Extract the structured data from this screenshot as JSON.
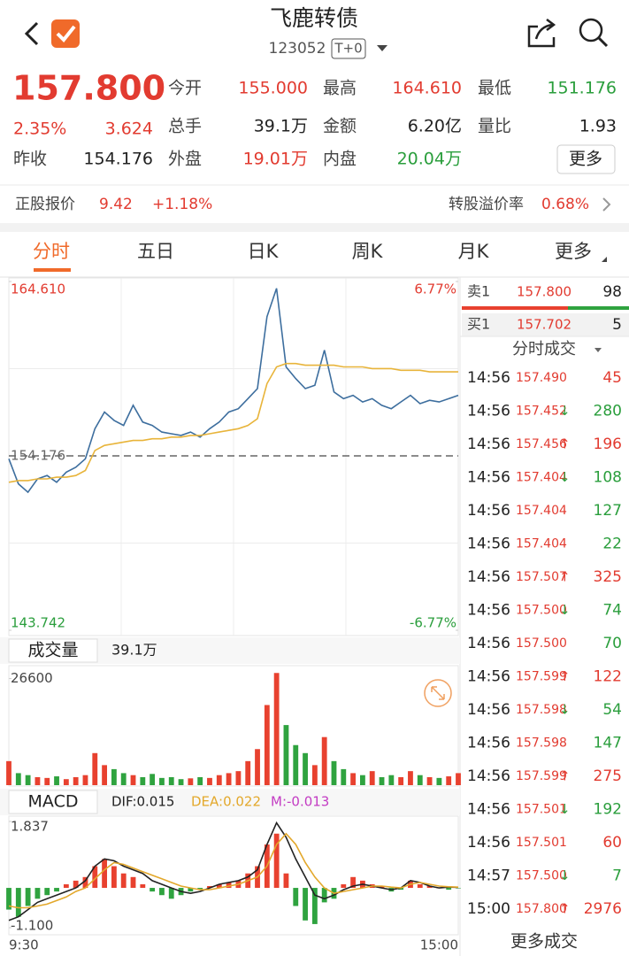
{
  "header": {
    "title": "飞鹿转债",
    "code": "123052",
    "badge": "T+0"
  },
  "quote": {
    "price": "157.800",
    "change_pct": "2.35%",
    "change": "3.624",
    "rows": [
      [
        {
          "label": "今开",
          "value": "155.000",
          "color": "#e23b30"
        },
        {
          "label": "最高",
          "value": "164.610",
          "color": "#e23b30"
        },
        {
          "label": "最低",
          "value": "151.176",
          "color": "#2a9e3c"
        }
      ],
      [
        {
          "label": "总手",
          "value": "39.1万",
          "color": "#222222"
        },
        {
          "label": "金额",
          "value": "6.20亿",
          "color": "#222222"
        },
        {
          "label": "量比",
          "value": "1.93",
          "color": "#222222"
        }
      ],
      [
        {
          "label": "昨收",
          "value": "154.176",
          "color": "#222222"
        },
        {
          "label": "外盘",
          "value": "19.01万",
          "color": "#e23b30"
        },
        {
          "label": "内盘",
          "value": "20.04万",
          "color": "#2a9e3c"
        }
      ]
    ],
    "more": "更多"
  },
  "stock": {
    "label": "正股报价",
    "price": "9.42",
    "change": "+1.18%",
    "premium_label": "转股溢价率",
    "premium": "0.68%"
  },
  "tabs": [
    "分时",
    "五日",
    "日K",
    "周K",
    "月K",
    "更多"
  ],
  "chart_data": [
    {
      "type": "line",
      "ylim": [
        143.742,
        164.61
      ],
      "yticks": [
        {
          "value": 164.61,
          "label": "164.610"
        },
        154.176,
        143.742
      ],
      "y2lim": [
        -6.77,
        6.77
      ],
      "y2ticks": [
        {
          "value": 6.77,
          "label": "6.77%"
        },
        {
          "value": -6.77,
          "label": "-6.77%"
        }
      ],
      "series": [
        {
          "color": "#3d6e9e",
          "values": [
            154.0,
            152.5,
            152.0,
            152.8,
            153.0,
            152.6,
            153.2,
            153.5,
            154.0,
            155.8,
            156.8,
            156.3,
            156.0,
            157.2,
            156.2,
            156.0,
            155.6,
            155.5,
            155.4,
            155.6,
            155.3,
            155.8,
            156.2,
            156.8,
            157.0,
            157.6,
            158.2,
            162.5,
            164.2,
            159.5,
            158.8,
            158.2,
            158.4,
            160.5,
            158.0,
            157.6,
            157.8,
            157.4,
            157.6,
            157.2,
            157.0,
            157.4,
            157.8,
            157.3,
            157.5,
            157.4,
            157.6,
            157.8
          ]
        },
        {
          "color": "#e8b43a",
          "values": [
            152.6,
            152.7,
            152.7,
            152.8,
            152.8,
            152.9,
            152.9,
            153.0,
            153.3,
            154.5,
            154.8,
            154.9,
            155.0,
            155.1,
            155.1,
            155.2,
            155.2,
            155.3,
            155.3,
            155.4,
            155.4,
            155.5,
            155.6,
            155.7,
            155.8,
            156.0,
            156.4,
            158.5,
            159.5,
            159.7,
            159.7,
            159.6,
            159.6,
            159.6,
            159.6,
            159.5,
            159.5,
            159.5,
            159.4,
            159.4,
            159.4,
            159.3,
            159.3,
            159.3,
            159.2,
            159.2,
            159.2,
            159.2
          ]
        }
      ]
    },
    {
      "type": "bar",
      "title": "成交量",
      "subtitle": "39.1万",
      "ylim": [
        0,
        28500
      ],
      "yticks": [
        26600
      ],
      "values": [
        6000,
        3000,
        2500,
        2000,
        1800,
        2200,
        1500,
        2000,
        2500,
        8000,
        5000,
        4000,
        3000,
        2500,
        2000,
        2800,
        1800,
        2000,
        1500,
        1700,
        2000,
        1800,
        2500,
        3000,
        3500,
        6000,
        9000,
        20000,
        28000,
        15000,
        10000,
        8000,
        5000,
        12000,
        6000,
        4000,
        3000,
        2500,
        3500,
        2000,
        2500,
        2000,
        3500,
        2500,
        2000,
        1800,
        2200,
        3000
      ],
      "colors": [
        "#e8412f",
        "#2fa33f",
        "#2fa33f",
        "#e8412f",
        "#e8412f",
        "#2fa33f",
        "#e8412f",
        "#e8412f",
        "#e8412f",
        "#e8412f",
        "#e8412f",
        "#2fa33f",
        "#2fa33f",
        "#e8412f",
        "#2fa33f",
        "#2fa33f",
        "#2fa33f",
        "#2fa33f",
        "#2fa33f",
        "#e8412f",
        "#2fa33f",
        "#e8412f",
        "#e8412f",
        "#e8412f",
        "#e8412f",
        "#e8412f",
        "#e8412f",
        "#e8412f",
        "#e8412f",
        "#2fa33f",
        "#2fa33f",
        "#2fa33f",
        "#e8412f",
        "#e8412f",
        "#2fa33f",
        "#2fa33f",
        "#e8412f",
        "#2fa33f",
        "#e8412f",
        "#2fa33f",
        "#2fa33f",
        "#e8412f",
        "#e8412f",
        "#2fa33f",
        "#e8412f",
        "#2fa33f",
        "#e8412f",
        "#e8412f"
      ]
    },
    {
      "type": "macd",
      "title": "MACD",
      "ylim": [
        -1.1,
        1.837
      ],
      "yticks": [
        1.837,
        {
          "value": -1.1,
          "label": "-1.100"
        }
      ],
      "categories": [
        "9:30",
        null,
        null,
        null,
        null,
        null,
        null,
        null,
        null,
        null,
        null,
        null,
        null,
        null,
        null,
        null,
        null,
        null,
        null,
        null,
        null,
        null,
        null,
        null,
        null,
        null,
        null,
        null,
        null,
        null,
        null,
        null,
        null,
        null,
        null,
        null,
        null,
        null,
        null,
        null,
        null,
        null,
        null,
        null,
        null,
        null,
        null,
        "15:00"
      ],
      "series": [
        {
          "name": "DIF:0.015",
          "color": "#222222",
          "values": [
            -0.9,
            -0.8,
            -0.6,
            -0.4,
            -0.3,
            -0.2,
            -0.1,
            0.0,
            0.2,
            0.6,
            0.8,
            0.75,
            0.6,
            0.5,
            0.4,
            0.2,
            0.1,
            0.0,
            -0.1,
            -0.15,
            -0.1,
            0.0,
            0.1,
            0.15,
            0.2,
            0.3,
            0.5,
            1.2,
            1.8,
            1.4,
            0.8,
            0.3,
            -0.2,
            -0.3,
            -0.2,
            -0.05,
            0.05,
            0.1,
            0.05,
            0.0,
            -0.05,
            0.0,
            0.2,
            0.15,
            0.05,
            0.0,
            0.02,
            0.015
          ]
        },
        {
          "name": "DEA:0.022",
          "color": "#e3a82b",
          "values": [
            -0.5,
            -0.55,
            -0.55,
            -0.5,
            -0.45,
            -0.35,
            -0.25,
            -0.1,
            0.0,
            0.25,
            0.5,
            0.7,
            0.65,
            0.55,
            0.45,
            0.35,
            0.25,
            0.15,
            0.05,
            0.0,
            -0.05,
            -0.05,
            0.0,
            0.05,
            0.1,
            0.2,
            0.3,
            0.6,
            1.2,
            1.5,
            1.2,
            0.7,
            0.3,
            0.0,
            -0.15,
            -0.1,
            -0.05,
            0.0,
            0.05,
            0.05,
            0.02,
            0.0,
            0.1,
            0.15,
            0.1,
            0.05,
            0.03,
            0.022
          ]
        },
        {
          "name": "M:-0.013",
          "color": "#c33cc3",
          "type": "bar",
          "up_color": "#e8412f",
          "down_color": "#2fa33f",
          "values": [
            -0.6,
            -0.8,
            -0.5,
            -0.3,
            -0.2,
            -0.1,
            0.1,
            0.2,
            0.3,
            0.6,
            0.8,
            0.6,
            0.4,
            0.3,
            0.1,
            -0.1,
            -0.2,
            -0.3,
            -0.2,
            -0.1,
            -0.05,
            0.05,
            0.1,
            0.15,
            0.2,
            0.4,
            0.6,
            1.2,
            1.5,
            0.4,
            -0.5,
            -0.9,
            -1.0,
            -0.4,
            -0.3,
            0.1,
            0.3,
            0.2,
            0.1,
            0.05,
            -0.1,
            -0.05,
            0.2,
            0.1,
            0.05,
            0.0,
            -0.05,
            -0.013
          ]
        }
      ]
    }
  ],
  "order_book": [
    {
      "label": "卖1",
      "price": "157.800",
      "volume": "98"
    },
    {
      "label": "买1",
      "price": "157.702",
      "volume": "5"
    }
  ],
  "trades_title": "分时成交",
  "trades": [
    {
      "time": "14:56",
      "price": "157.490",
      "volume": "45",
      "color": "#e23b30"
    },
    {
      "time": "14:56",
      "price": "157.452",
      "dir": "↓",
      "volume": "280",
      "color": "#2a9e3c"
    },
    {
      "time": "14:56",
      "price": "157.456",
      "dir": "↑",
      "volume": "196",
      "color": "#e23b30"
    },
    {
      "time": "14:56",
      "price": "157.404",
      "dir": "↓",
      "volume": "108",
      "color": "#2a9e3c"
    },
    {
      "time": "14:56",
      "price": "157.404",
      "volume": "127",
      "color": "#2a9e3c"
    },
    {
      "time": "14:56",
      "price": "157.404",
      "volume": "22",
      "color": "#2a9e3c"
    },
    {
      "time": "14:56",
      "price": "157.507",
      "dir": "↑",
      "volume": "325",
      "color": "#e23b30"
    },
    {
      "time": "14:56",
      "price": "157.500",
      "dir": "↓",
      "volume": "74",
      "color": "#2a9e3c"
    },
    {
      "time": "14:56",
      "price": "157.500",
      "volume": "70",
      "color": "#2a9e3c"
    },
    {
      "time": "14:56",
      "price": "157.599",
      "dir": "↑",
      "volume": "122",
      "color": "#e23b30"
    },
    {
      "time": "14:56",
      "price": "157.598",
      "dir": "↓",
      "volume": "54",
      "color": "#2a9e3c"
    },
    {
      "time": "14:56",
      "price": "157.598",
      "volume": "147",
      "color": "#2a9e3c"
    },
    {
      "time": "14:56",
      "price": "157.599",
      "dir": "↑",
      "volume": "275",
      "color": "#e23b30"
    },
    {
      "time": "14:56",
      "price": "157.501",
      "dir": "↓",
      "volume": "192",
      "color": "#2a9e3c"
    },
    {
      "time": "14:56",
      "price": "157.501",
      "volume": "60",
      "color": "#e23b30"
    },
    {
      "time": "14:57",
      "price": "157.500",
      "dir": "↓",
      "volume": "7",
      "color": "#2a9e3c"
    },
    {
      "time": "15:00",
      "price": "157.800",
      "dir": "↑",
      "volume": "2976",
      "color": "#e23b30"
    }
  ],
  "more_trades": "更多成交"
}
